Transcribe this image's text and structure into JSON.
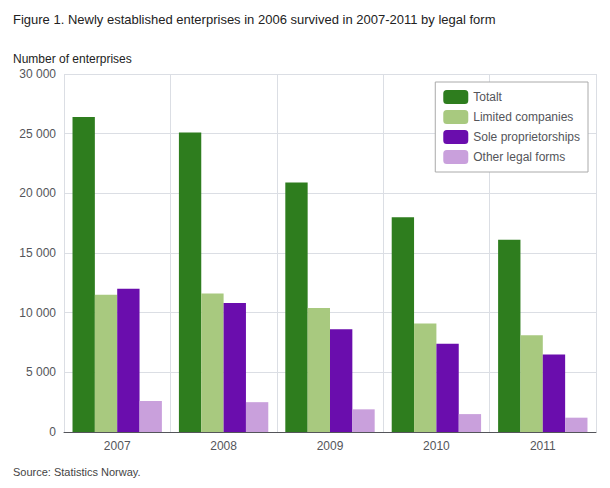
{
  "chart_data": {
    "type": "bar",
    "title": "Figure 1. Newly established enterprises in 2006 survived in 2007-2011 by legal form",
    "ylabel": "Number of enterprises",
    "source": "Source: Statistics Norway.",
    "categories": [
      "2007",
      "2008",
      "2009",
      "2010",
      "2011"
    ],
    "series": [
      {
        "name": "Totalt",
        "color": "#2e7d1e",
        "values": [
          26400,
          25100,
          20900,
          18000,
          16100
        ]
      },
      {
        "name": "Limited companies",
        "color": "#a8c97f",
        "values": [
          11500,
          11600,
          10400,
          9100,
          8100
        ]
      },
      {
        "name": "Sole proprietorships",
        "color": "#6a0dad",
        "values": [
          12000,
          10800,
          8600,
          7400,
          6500
        ]
      },
      {
        "name": "Other legal forms",
        "color": "#c9a0dc",
        "values": [
          2600,
          2500,
          1900,
          1500,
          1200
        ]
      }
    ],
    "ylim": [
      0,
      30000
    ],
    "yticks": [
      0,
      {
        "value": 5000,
        "label": "5 000"
      },
      {
        "value": 10000,
        "label": "10 000"
      },
      {
        "value": 15000,
        "label": "15 000"
      },
      {
        "value": 20000,
        "label": "20 000"
      },
      {
        "value": 25000,
        "label": "25 000"
      },
      {
        "value": 30000,
        "label": "30 000"
      }
    ],
    "grid": true,
    "legend": "upper right"
  }
}
